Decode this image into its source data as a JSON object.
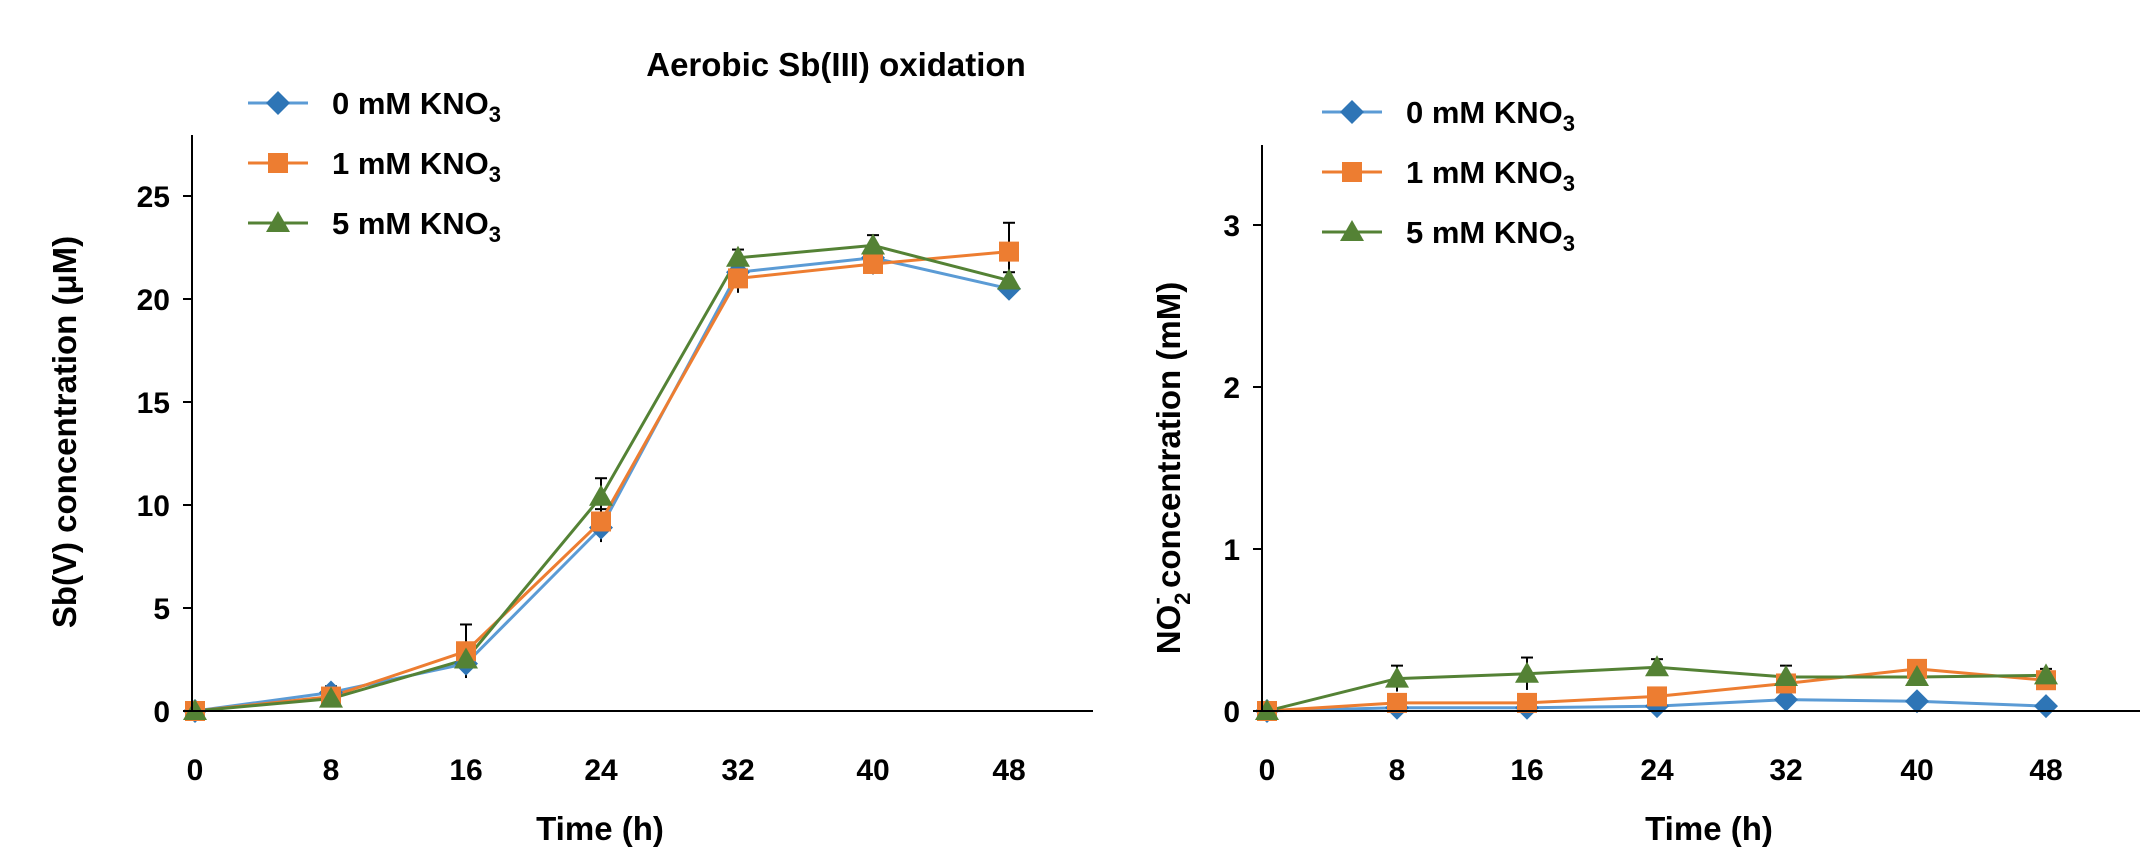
{
  "figure_title": "Aerobic Sb(III) oxidation",
  "colors": {
    "series_0": "#5B9BD5",
    "series_0_marker": "#2E75B6",
    "series_1": "#ED7D31",
    "series_2": "#548235",
    "axis": "#000000"
  },
  "chart_data": [
    {
      "type": "line",
      "title": "Aerobic Sb(III) oxidation",
      "xlabel": "Time (h)",
      "ylabel_main": "Sb(V) concentration",
      "ylabel_unit": "(μM)",
      "x": [
        0,
        8,
        16,
        24,
        32,
        40,
        48
      ],
      "xticks": [
        "0",
        "8",
        "16",
        "24",
        "32",
        "40",
        "48"
      ],
      "yticks": [
        "0",
        "5",
        "10",
        "15",
        "20",
        "25"
      ],
      "xlim": [
        0,
        53
      ],
      "ylim": [
        0,
        27
      ],
      "legend_position": "top-left",
      "series": [
        {
          "name_prefix": "0 mM KNO",
          "name_sub": "3",
          "marker": "diamond",
          "values": [
            0,
            0.9,
            2.3,
            8.9,
            21.3,
            22.0,
            20.5
          ],
          "errors": [
            0,
            0.3,
            0.6,
            0.7,
            0.6,
            0.5,
            0.3
          ]
        },
        {
          "name_prefix": "1 mM KNO",
          "name_sub": "3",
          "marker": "square",
          "values": [
            0,
            0.7,
            2.9,
            9.2,
            21.0,
            21.7,
            22.3
          ],
          "errors": [
            0,
            0.3,
            1.3,
            0.6,
            0.7,
            0.5,
            1.4
          ]
        },
        {
          "name_prefix": "5 mM KNO",
          "name_sub": "3",
          "marker": "triangle",
          "values": [
            0,
            0.6,
            2.5,
            10.4,
            22.0,
            22.6,
            20.9
          ],
          "errors": [
            0,
            0.2,
            0.6,
            0.9,
            0.4,
            0.5,
            0.4
          ]
        }
      ]
    },
    {
      "type": "line",
      "title": "",
      "xlabel": "Time (h)",
      "ylabel_main": "NO",
      "ylabel_sub": "2",
      "ylabel_sup": "-",
      "ylabel_rest": " concentration (mM)",
      "x": [
        0,
        8,
        16,
        24,
        32,
        40,
        48
      ],
      "xticks": [
        "0",
        "8",
        "16",
        "24",
        "32",
        "40",
        "48"
      ],
      "yticks": [
        "0",
        "1",
        "2",
        "3"
      ],
      "xlim": [
        0,
        54
      ],
      "ylim": [
        0,
        3.5
      ],
      "legend_position": "top-left",
      "series": [
        {
          "name_prefix": "0 mM KNO",
          "name_sub": "3",
          "marker": "diamond",
          "values": [
            0,
            0.02,
            0.02,
            0.03,
            0.07,
            0.06,
            0.03
          ],
          "errors": [
            0,
            0.01,
            0.01,
            0.01,
            0.02,
            0.02,
            0.01
          ]
        },
        {
          "name_prefix": "1 mM KNO",
          "name_sub": "3",
          "marker": "square",
          "values": [
            0,
            0.05,
            0.05,
            0.09,
            0.17,
            0.26,
            0.19
          ],
          "errors": [
            0,
            0.02,
            0.02,
            0.03,
            0.04,
            0.03,
            0.03
          ]
        },
        {
          "name_prefix": "5 mM KNO",
          "name_sub": "3",
          "marker": "triangle",
          "values": [
            0,
            0.2,
            0.23,
            0.27,
            0.21,
            0.21,
            0.22
          ],
          "errors": [
            0,
            0.08,
            0.1,
            0.05,
            0.07,
            0.03,
            0.04
          ]
        }
      ]
    }
  ]
}
